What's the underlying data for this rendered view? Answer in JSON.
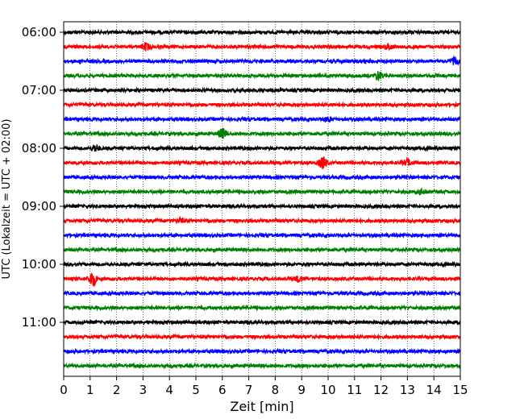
{
  "chart_data": {
    "type": "line",
    "subtype": "helicorder",
    "xlabel": "Zeit  [min]",
    "ylabel": "UTC (Lokalzeit = UTC + 02:00)",
    "xlim": [
      0,
      15
    ],
    "xticks": [
      0,
      1,
      2,
      3,
      4,
      5,
      6,
      7,
      8,
      9,
      10,
      11,
      12,
      13,
      14,
      15
    ],
    "ytick_labels": [
      "06:00",
      "07:00",
      "08:00",
      "09:00",
      "10:00",
      "11:00"
    ],
    "x_grid": "dotted vertical lines at every minute",
    "trace_interval_minutes": 15,
    "trace_colors": [
      "#000000",
      "#ff0000",
      "#0000ff",
      "#008000"
    ],
    "traces": [
      {
        "start": "06:00",
        "color": "#000000",
        "events": []
      },
      {
        "start": "06:15",
        "color": "#ff0000",
        "events": [
          {
            "t": 3.1,
            "amp": 1.0
          },
          {
            "t": 12.3,
            "amp": 0.7
          }
        ]
      },
      {
        "start": "06:30",
        "color": "#0000ff",
        "events": [
          {
            "t": 14.8,
            "amp": 0.9
          }
        ]
      },
      {
        "start": "06:45",
        "color": "#008000",
        "events": [
          {
            "t": 11.9,
            "amp": 1.3
          }
        ]
      },
      {
        "start": "07:00",
        "color": "#000000",
        "events": []
      },
      {
        "start": "07:15",
        "color": "#ff0000",
        "events": []
      },
      {
        "start": "07:30",
        "color": "#0000ff",
        "events": [
          {
            "t": 10.0,
            "amp": 0.6
          }
        ]
      },
      {
        "start": "07:45",
        "color": "#008000",
        "events": [
          {
            "t": 6.0,
            "amp": 1.4
          }
        ]
      },
      {
        "start": "08:00",
        "color": "#000000",
        "events": [
          {
            "t": 1.2,
            "amp": 1.0
          }
        ]
      },
      {
        "start": "08:15",
        "color": "#ff0000",
        "events": [
          {
            "t": 9.8,
            "amp": 1.8
          },
          {
            "t": 13.0,
            "amp": 0.9
          }
        ]
      },
      {
        "start": "08:30",
        "color": "#0000ff",
        "events": []
      },
      {
        "start": "08:45",
        "color": "#008000",
        "events": [
          {
            "t": 13.6,
            "amp": 0.8
          }
        ]
      },
      {
        "start": "09:00",
        "color": "#000000",
        "events": []
      },
      {
        "start": "09:15",
        "color": "#ff0000",
        "events": [
          {
            "t": 4.4,
            "amp": 0.6
          }
        ]
      },
      {
        "start": "09:30",
        "color": "#0000ff",
        "events": []
      },
      {
        "start": "09:45",
        "color": "#008000",
        "events": []
      },
      {
        "start": "10:00",
        "color": "#000000",
        "events": []
      },
      {
        "start": "10:15",
        "color": "#ff0000",
        "events": [
          {
            "t": 1.1,
            "amp": 2.2
          },
          {
            "t": 8.9,
            "amp": 0.8
          }
        ]
      },
      {
        "start": "10:30",
        "color": "#0000ff",
        "events": []
      },
      {
        "start": "10:45",
        "color": "#008000",
        "events": []
      },
      {
        "start": "11:00",
        "color": "#000000",
        "events": []
      },
      {
        "start": "11:15",
        "color": "#ff0000",
        "events": []
      },
      {
        "start": "11:30",
        "color": "#0000ff",
        "events": []
      },
      {
        "start": "11:45",
        "color": "#008000",
        "events": []
      }
    ]
  }
}
